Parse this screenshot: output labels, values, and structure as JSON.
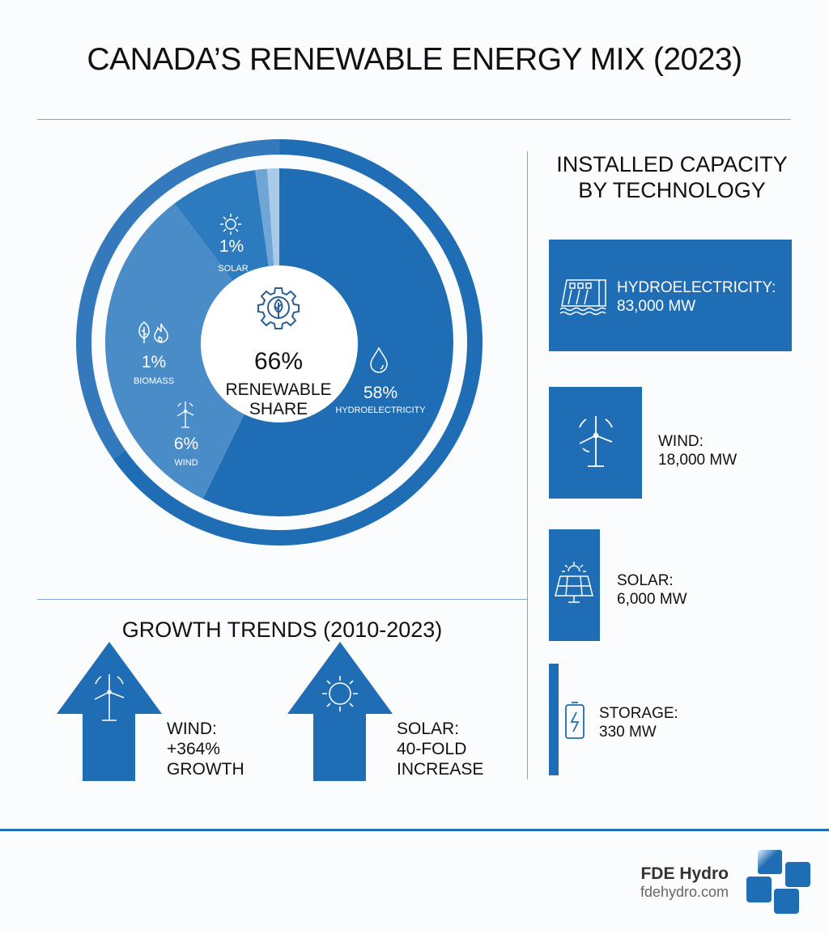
{
  "title": "CANADA’S RENEWABLE ENERGY MIX (2023)",
  "colors": {
    "primary": "#1f6db4",
    "light_segment": "#4a8cc8",
    "solar_segment": "#2d7bbf",
    "outer_ring_light": "#3579bd",
    "divider": "#7fa9cf"
  },
  "chart_data": {
    "type": "pie",
    "center_label": {
      "value": "66%",
      "line1": "RENEWABLE",
      "line2": "SHARE"
    },
    "slices": [
      {
        "name": "HYDROELECTRICITY",
        "label": "58%",
        "value": 58,
        "icon": "water-drop-icon"
      },
      {
        "name": "WIND",
        "label": "6%",
        "value": 6,
        "icon": "wind-turbine-icon"
      },
      {
        "name": "BIOMASS",
        "label": "1%",
        "value": 1,
        "icon": "leaf-flame-icon"
      },
      {
        "name": "SOLAR",
        "label": "1%",
        "value": 1,
        "icon": "sun-icon"
      }
    ]
  },
  "capacity": {
    "title_line1": "INSTALLED CAPACITY",
    "title_line2": "BY TECHNOLOGY",
    "items": [
      {
        "name": "HYDROELECTRICITY:",
        "value": "83,000 MW",
        "mw": 83000,
        "icon": "dam-icon"
      },
      {
        "name": "WIND:",
        "value": "18,000 MW",
        "mw": 18000,
        "icon": "wind-turbine-icon"
      },
      {
        "name": "SOLAR:",
        "value": "6,000 MW",
        "mw": 6000,
        "icon": "solar-panel-icon"
      },
      {
        "name": "STORAGE:",
        "value": "330 MW",
        "mw": 330,
        "icon": "battery-icon"
      }
    ]
  },
  "growth": {
    "title": "GROWTH TRENDS (2010-2023)",
    "items": [
      {
        "line1": "WIND:",
        "line2": "+364%",
        "line3": "GROWTH",
        "icon": "wind-turbine-icon"
      },
      {
        "line1": "SOLAR:",
        "line2": "40-FOLD",
        "line3": "INCREASE",
        "icon": "sun-icon"
      }
    ]
  },
  "brand": {
    "name": "FDE Hydro",
    "url": "fdehydro.com"
  }
}
